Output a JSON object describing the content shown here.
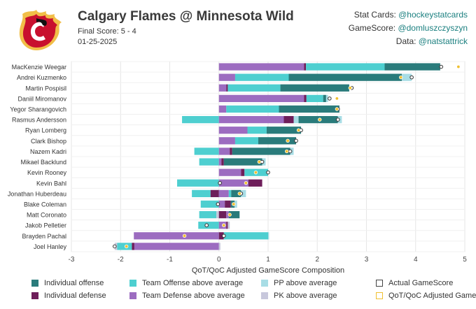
{
  "header": {
    "title": "Calgary Flames @ Minnesota Wild",
    "final_score": "Final Score: 5 - 4",
    "date": "01-25-2025",
    "credits": [
      {
        "label": "Stat Cards: ",
        "handle": "@hockeystatcards"
      },
      {
        "label": "GameScore: ",
        "handle": "@domluszczyszyn"
      },
      {
        "label": "Data: ",
        "handle": "@natstattrick"
      }
    ]
  },
  "colors": {
    "ind_off": "#2a7b7b",
    "team_off": "#4ecfd0",
    "pp": "#a8dde5",
    "ind_def": "#6e1e5a",
    "team_def": "#9c6cc0",
    "pk": "#c8c8dc",
    "qot": "#f0c030",
    "grid": "#e6e6e6"
  },
  "chart_data": {
    "type": "bar",
    "orientation": "horizontal-stacked",
    "xlabel": "QoT/QoC Adjusted GameScore Composition",
    "xlim": [
      -3,
      5
    ],
    "xticks": [
      "-3",
      "-2",
      "-1",
      "0",
      "1",
      "2",
      "3",
      "4",
      "5"
    ],
    "players": [
      {
        "name": "MacKenzie Weegar",
        "segs": [
          [
            "team_def",
            0,
            1.73
          ],
          [
            "ind_def",
            1.73,
            1.77
          ],
          [
            "team_off",
            1.77,
            3.37
          ],
          [
            "ind_off",
            3.37,
            4.5
          ]
        ],
        "actual": 4.52,
        "qot": 4.87
      },
      {
        "name": "Andrei Kuzmenko",
        "segs": [
          [
            "team_def",
            0,
            0.33
          ],
          [
            "team_off",
            0.33,
            1.42
          ],
          [
            "ind_off",
            1.42,
            3.72
          ],
          [
            "pp",
            3.72,
            3.92
          ]
        ],
        "actual": 3.92,
        "qot": 3.7
      },
      {
        "name": "Martin Pospisil",
        "segs": [
          [
            "team_def",
            0,
            0.15
          ],
          [
            "ind_def",
            0.15,
            0.18
          ],
          [
            "team_off",
            0.18,
            1.25
          ],
          [
            "ind_off",
            1.25,
            2.65
          ]
        ],
        "actual": 2.7,
        "qot": 2.67
      },
      {
        "name": "Daniil Miromanov",
        "segs": [
          [
            "team_def",
            0,
            1.73
          ],
          [
            "ind_def",
            1.73,
            1.78
          ],
          [
            "team_off",
            1.78,
            2.12
          ],
          [
            "ind_off",
            2.12,
            2.18
          ],
          [
            "pp",
            2.18,
            2.22
          ]
        ],
        "actual": 2.25,
        "qot": 2.4
      },
      {
        "name": "Yegor Sharangovich",
        "segs": [
          [
            "team_def",
            0,
            0.15
          ],
          [
            "team_off",
            0.15,
            1.22
          ],
          [
            "ind_off",
            1.22,
            2.45
          ]
        ],
        "actual": 2.42,
        "qot": 2.4
      },
      {
        "name": "Rasmus Andersson",
        "segs": [
          [
            "team_off",
            -0.75,
            0
          ],
          [
            "team_def",
            0,
            1.32
          ],
          [
            "ind_def",
            1.32,
            1.52
          ],
          [
            "pp",
            1.52,
            1.62
          ],
          [
            "ind_off",
            1.62,
            2.42
          ],
          [
            "pp",
            2.42,
            2.5
          ]
        ],
        "actual": 2.42,
        "qot": 2.05
      },
      {
        "name": "Ryan Lomberg",
        "segs": [
          [
            "team_def",
            0,
            0.58
          ],
          [
            "team_off",
            0.58,
            0.97
          ],
          [
            "ind_off",
            0.97,
            1.67
          ]
        ],
        "actual": 1.67,
        "qot": 1.62
      },
      {
        "name": "Clark Bishop",
        "segs": [
          [
            "team_def",
            0,
            0.33
          ],
          [
            "team_off",
            0.33,
            0.8
          ],
          [
            "ind_off",
            0.8,
            1.57
          ]
        ],
        "actual": 1.57,
        "qot": 1.4
      },
      {
        "name": "Nazem Kadri",
        "segs": [
          [
            "team_off",
            -0.5,
            0
          ],
          [
            "team_def",
            0,
            0.22
          ],
          [
            "ind_def",
            0.22,
            0.27
          ],
          [
            "ind_off",
            0.27,
            1.45
          ],
          [
            "pp",
            1.45,
            1.52
          ]
        ],
        "actual": 1.45,
        "qot": 1.38
      },
      {
        "name": "Mikael Backlund",
        "segs": [
          [
            "team_off",
            -0.4,
            0
          ],
          [
            "team_def",
            0,
            0.05
          ],
          [
            "ind_def",
            0.05,
            0.1
          ],
          [
            "ind_off",
            0.1,
            0.88
          ],
          [
            "pp",
            0.88,
            0.95
          ]
        ],
        "actual": 0.88,
        "qot": 0.82
      },
      {
        "name": "Kevin Rooney",
        "segs": [
          [
            "team_def",
            0,
            0.45
          ],
          [
            "ind_def",
            0.45,
            0.52
          ],
          [
            "team_off",
            0.52,
            1.0
          ]
        ],
        "actual": 1.0,
        "qot": 0.75
      },
      {
        "name": "Kevin Bahl",
        "segs": [
          [
            "team_off",
            -0.85,
            0
          ],
          [
            "team_def",
            0,
            0.6
          ],
          [
            "ind_def",
            0.6,
            0.88
          ]
        ],
        "actual": 0.02,
        "qot": 0.55
      },
      {
        "name": "Jonathan Huberdeau",
        "segs": [
          [
            "team_off",
            -0.55,
            -0.17
          ],
          [
            "ind_def",
            -0.17,
            0
          ],
          [
            "team_def",
            0,
            0.2
          ],
          [
            "team_off",
            0.2,
            0.25
          ],
          [
            "ind_off",
            0.25,
            0.45
          ],
          [
            "pp",
            0.45,
            0.55
          ]
        ],
        "actual": 0.45,
        "qot": 0.42
      },
      {
        "name": "Blake Coleman",
        "segs": [
          [
            "team_off",
            -0.37,
            0
          ],
          [
            "team_def",
            0,
            0.12
          ],
          [
            "ind_def",
            0.12,
            0.24
          ],
          [
            "ind_off",
            0.24,
            0.32
          ],
          [
            "pp",
            0.32,
            0.37
          ]
        ],
        "actual": -0.02,
        "qot": 0.3
      },
      {
        "name": "Matt Coronato",
        "segs": [
          [
            "team_off",
            -0.4,
            -0.05
          ],
          [
            "pk",
            -0.05,
            0
          ],
          [
            "ind_def",
            0,
            0.15
          ],
          [
            "team_def",
            0.15,
            0.2
          ],
          [
            "ind_off",
            0.2,
            0.42
          ]
        ],
        "actual": 0.22,
        "qot": 0.22
      },
      {
        "name": "Jakob Pelletier",
        "segs": [
          [
            "team_off",
            -0.42,
            0
          ],
          [
            "team_def",
            0,
            0.15
          ],
          [
            "ind_def",
            0.15,
            0.18
          ],
          [
            "pk",
            0.18,
            0.22
          ]
        ],
        "actual": -0.25,
        "qot": 0.1
      },
      {
        "name": "Brayden Pachal",
        "segs": [
          [
            "team_def",
            -1.73,
            0
          ],
          [
            "ind_def",
            0,
            0.1
          ],
          [
            "team_off",
            0.1,
            1.0
          ],
          [
            "pp",
            1.0,
            1.02
          ]
        ],
        "actual": 0.1,
        "qot": -0.7
      },
      {
        "name": "Joel Hanley",
        "segs": [
          [
            "pk",
            -2.12,
            -2.07
          ],
          [
            "team_off",
            -2.07,
            -1.77
          ],
          [
            "ind_def",
            -1.77,
            -1.72
          ],
          [
            "team_def",
            -1.72,
            0
          ],
          [
            "pk",
            0,
            0.03
          ]
        ],
        "actual": -2.12,
        "qot": -1.88
      }
    ]
  },
  "legend": [
    {
      "key": "ind_off",
      "label": "Individual offense"
    },
    {
      "key": "team_off",
      "label": "Team Offense above average"
    },
    {
      "key": "pp",
      "label": "PP above average"
    },
    {
      "key": "actual",
      "label": "Actual GameScore"
    },
    {
      "key": "ind_def",
      "label": "Individual defense"
    },
    {
      "key": "team_def",
      "label": "Team Defense above average"
    },
    {
      "key": "pk",
      "label": "PK above average"
    },
    {
      "key": "qot",
      "label": "QoT/QoC Adjusted GameScore"
    }
  ]
}
